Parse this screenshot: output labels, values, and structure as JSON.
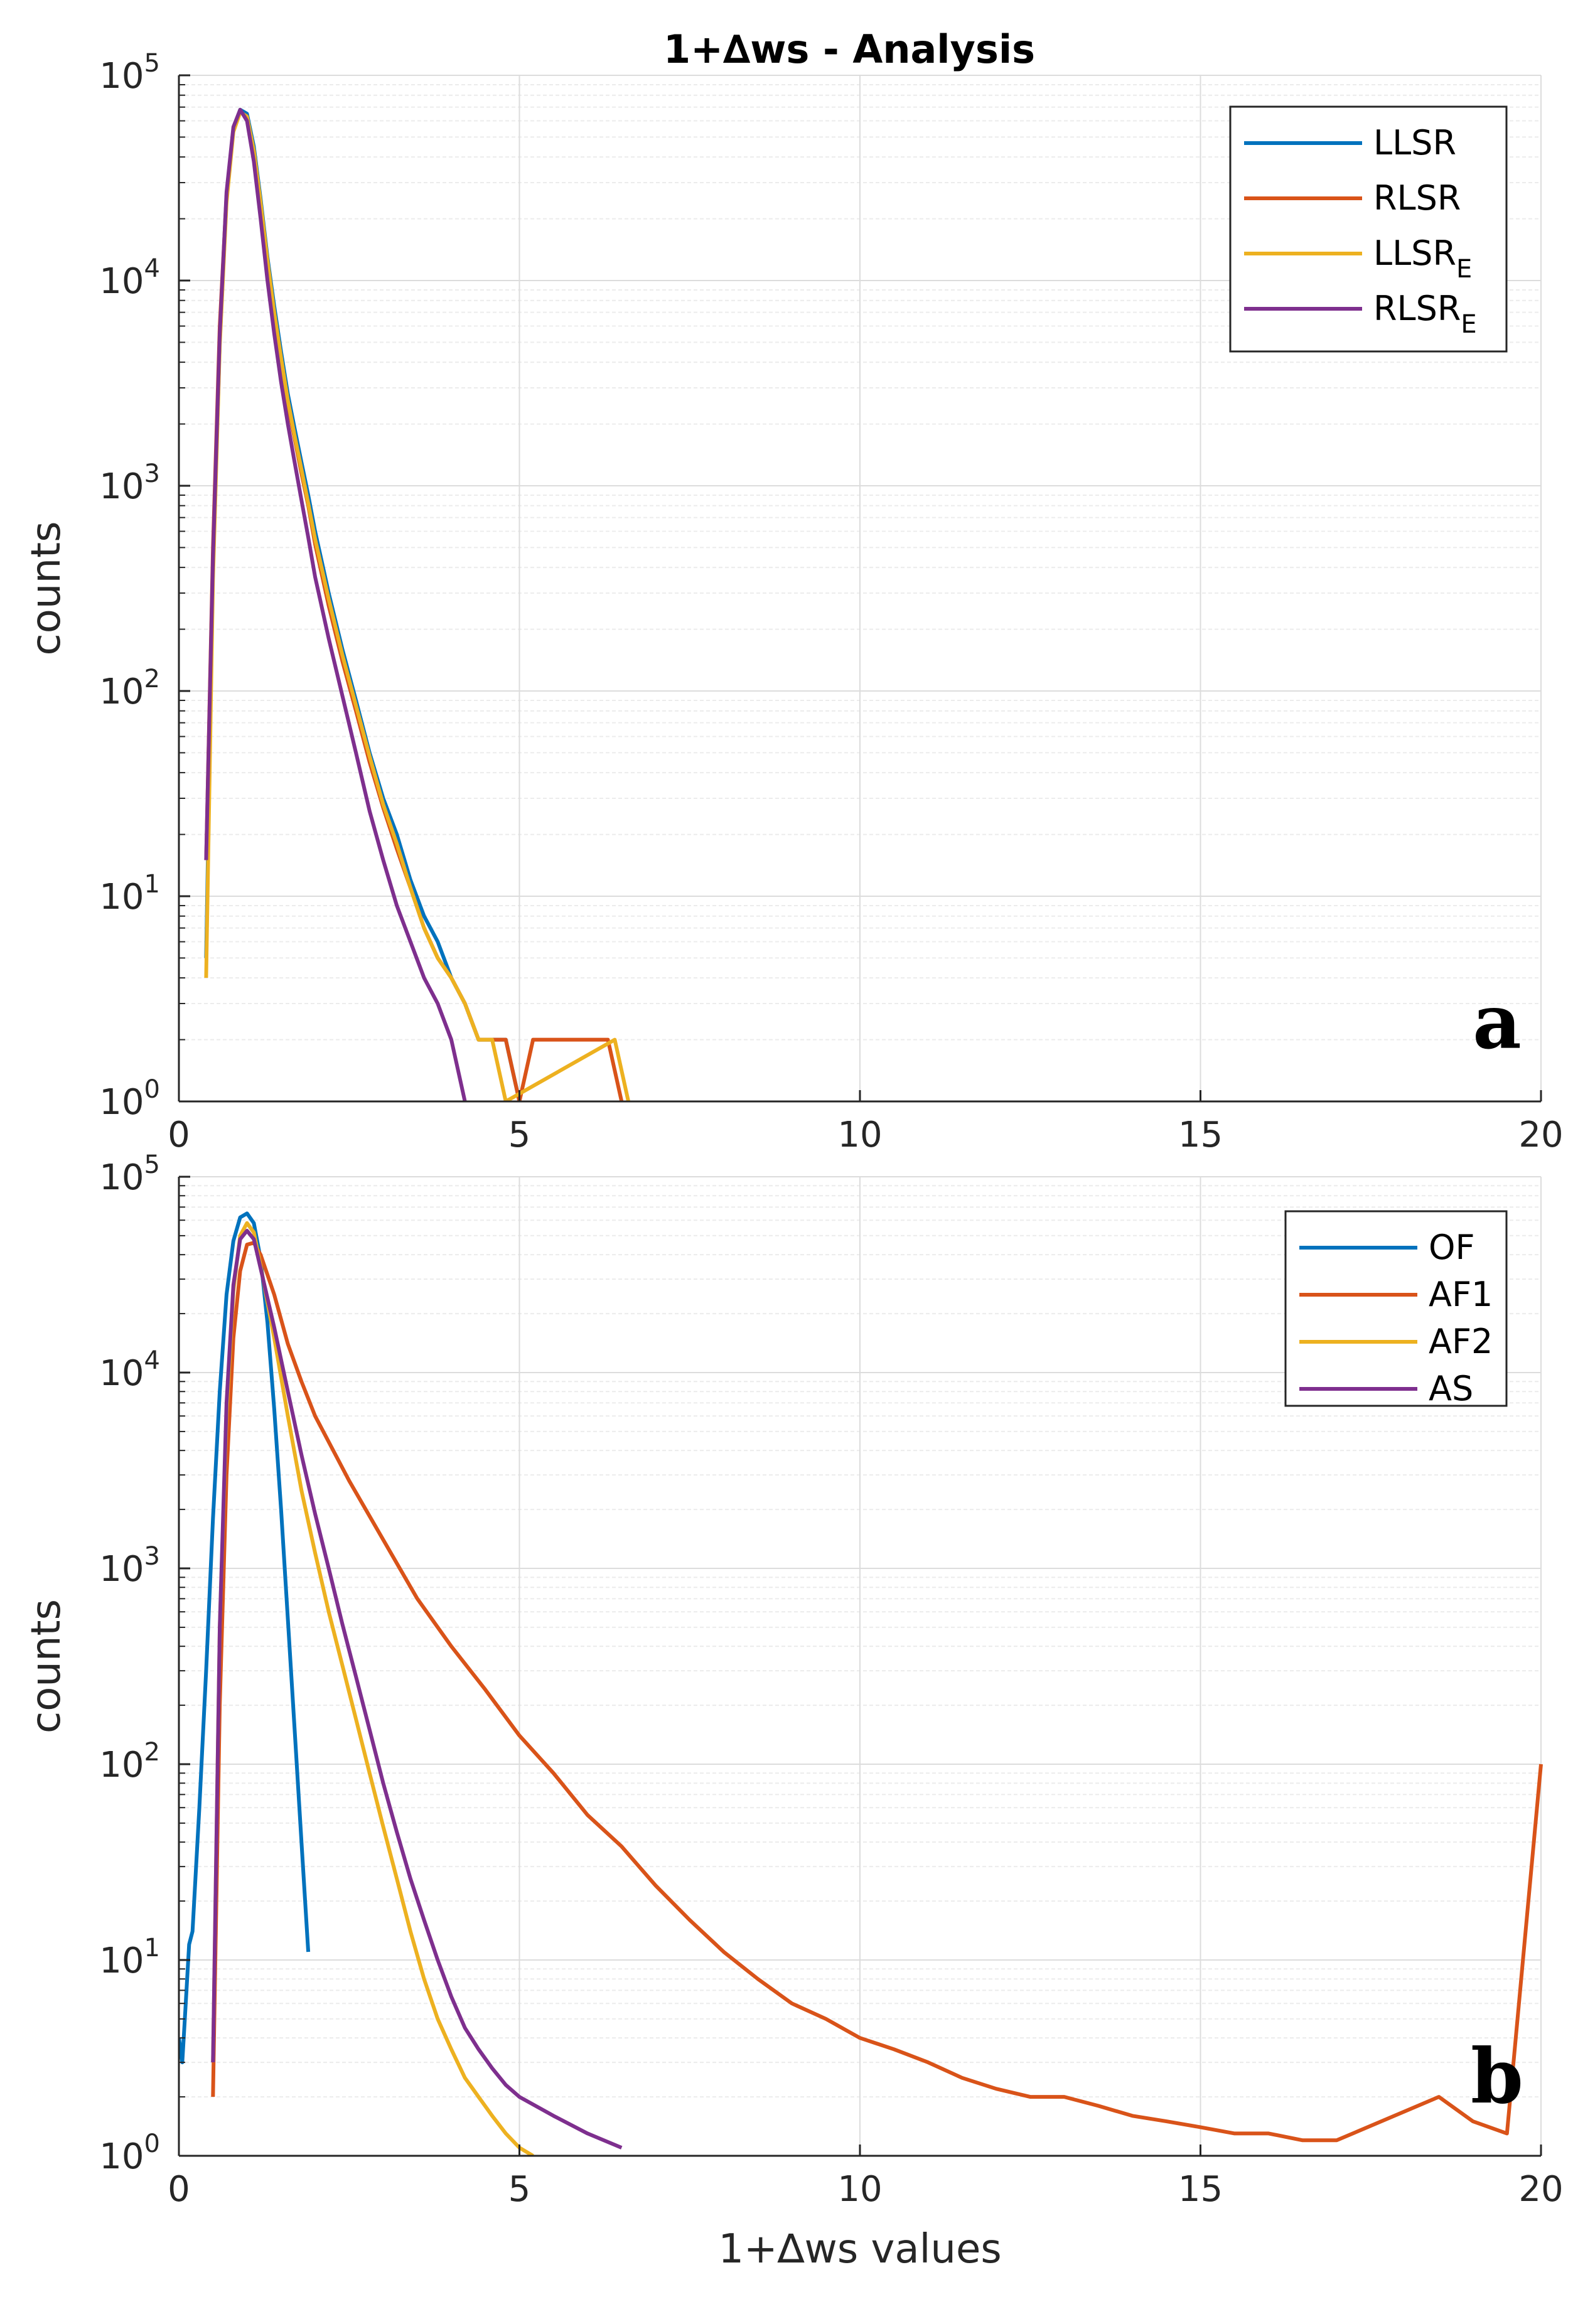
{
  "figure": {
    "title": "1+∆ws - Analysis"
  },
  "chart_data": [
    {
      "type": "line",
      "panel_label": "a",
      "title": "1+∆ws - Analysis",
      "xlabel": "",
      "ylabel": "counts",
      "xlim": [
        0,
        20
      ],
      "ylim": [
        1,
        100000
      ],
      "y_scale": "log",
      "grid": true,
      "legend_position": "top-right",
      "x_ticks": [
        "0",
        "5",
        "10",
        "15",
        "20"
      ],
      "y_ticks": [
        "10^0",
        "10^1",
        "10^2",
        "10^3",
        "10^4",
        "10^5"
      ],
      "series": [
        {
          "name": "LLSR",
          "color": "#0072BD",
          "x": [
            0.4,
            0.5,
            0.6,
            0.7,
            0.8,
            0.9,
            1.0,
            1.1,
            1.2,
            1.3,
            1.4,
            1.5,
            1.6,
            1.7,
            1.8,
            1.9,
            2.0,
            2.2,
            2.4,
            2.6,
            2.8,
            3.0,
            3.2,
            3.4,
            3.6,
            3.8,
            4.0,
            4.2,
            4.4,
            4.6,
            4.8,
            5.0
          ],
          "y": [
            5,
            400,
            5000,
            25000,
            55000,
            68000,
            65000,
            45000,
            25000,
            13000,
            7500,
            4500,
            2800,
            1900,
            1300,
            900,
            600,
            300,
            160,
            90,
            50,
            30,
            20,
            12,
            8,
            6,
            4,
            3,
            2,
            2,
            2,
            1
          ]
        },
        {
          "name": "RLSR",
          "color": "#D95319",
          "x": [
            0.4,
            0.5,
            0.6,
            0.7,
            0.8,
            0.9,
            1.0,
            1.1,
            1.2,
            1.3,
            1.4,
            1.5,
            1.6,
            1.7,
            1.8,
            1.9,
            2.0,
            2.2,
            2.4,
            2.6,
            2.8,
            3.0,
            3.2,
            3.4,
            3.6,
            3.8,
            4.0,
            4.2,
            4.4,
            4.6,
            4.8,
            5.0,
            5.2,
            6.3,
            6.5
          ],
          "y": [
            15,
            500,
            6000,
            26000,
            54000,
            67000,
            62000,
            42000,
            23000,
            12000,
            6800,
            4000,
            2500,
            1700,
            1150,
            800,
            520,
            260,
            140,
            80,
            45,
            27,
            17,
            11,
            7,
            5,
            4,
            3,
            2,
            2,
            2,
            1,
            2,
            2,
            1
          ]
        },
        {
          "name": "LLSR_E",
          "color": "#EDB120",
          "x": [
            0.4,
            0.5,
            0.6,
            0.7,
            0.8,
            0.9,
            1.0,
            1.1,
            1.2,
            1.3,
            1.4,
            1.5,
            1.6,
            1.7,
            1.8,
            1.9,
            2.0,
            2.2,
            2.4,
            2.6,
            2.8,
            3.0,
            3.2,
            3.4,
            3.6,
            3.8,
            4.0,
            4.2,
            4.4,
            4.6,
            4.8,
            6.4,
            6.6
          ],
          "y": [
            4,
            350,
            4800,
            24000,
            53000,
            66000,
            63000,
            43000,
            24000,
            12500,
            7000,
            4200,
            2600,
            1750,
            1200,
            820,
            550,
            280,
            150,
            85,
            48,
            28,
            18,
            11,
            7,
            5,
            4,
            3,
            2,
            2,
            1,
            2,
            1
          ]
        },
        {
          "name": "RLSR_E",
          "color": "#7E2F8E",
          "x": [
            0.4,
            0.5,
            0.6,
            0.7,
            0.8,
            0.9,
            1.0,
            1.1,
            1.2,
            1.3,
            1.4,
            1.5,
            1.6,
            1.7,
            1.8,
            1.9,
            2.0,
            2.2,
            2.4,
            2.6,
            2.8,
            3.0,
            3.2,
            3.4,
            3.6,
            3.8,
            4.0,
            4.2
          ],
          "y": [
            15,
            450,
            5500,
            27000,
            56000,
            68000,
            60000,
            38000,
            20000,
            10000,
            5500,
            3200,
            2000,
            1300,
            850,
            560,
            360,
            180,
            95,
            50,
            26,
            15,
            9,
            6,
            4,
            3,
            2,
            1
          ]
        }
      ]
    },
    {
      "type": "line",
      "panel_label": "b",
      "title": "",
      "xlabel": "1+∆ws values",
      "ylabel": "counts",
      "xlim": [
        0,
        20
      ],
      "ylim": [
        1,
        100000
      ],
      "y_scale": "log",
      "grid": true,
      "legend_position": "top-right",
      "x_ticks": [
        "0",
        "5",
        "10",
        "15",
        "20"
      ],
      "y_ticks": [
        "10^0",
        "10^1",
        "10^2",
        "10^3",
        "10^4",
        "10^5"
      ],
      "series": [
        {
          "name": "OF",
          "color": "#0072BD",
          "x": [
            0.0,
            0.05,
            0.1,
            0.15,
            0.2,
            0.3,
            0.4,
            0.5,
            0.6,
            0.7,
            0.8,
            0.9,
            1.0,
            1.1,
            1.2,
            1.3,
            1.4,
            1.5,
            1.6,
            1.7,
            1.8,
            1.9
          ],
          "y": [
            4,
            3,
            6,
            12,
            14,
            60,
            300,
            1800,
            8000,
            25000,
            47000,
            62000,
            65000,
            58000,
            38000,
            18000,
            6500,
            2000,
            550,
            150,
            40,
            11
          ]
        },
        {
          "name": "AF1",
          "color": "#D95319",
          "x": [
            0.5,
            0.6,
            0.7,
            0.8,
            0.9,
            1.0,
            1.1,
            1.2,
            1.4,
            1.6,
            1.8,
            2.0,
            2.5,
            3.0,
            3.5,
            4.0,
            4.5,
            5.0,
            5.5,
            6.0,
            6.5,
            7.0,
            7.5,
            8.0,
            8.5,
            9.0,
            9.5,
            10.0,
            10.5,
            11.0,
            11.5,
            12.0,
            12.5,
            13.0,
            13.5,
            14.0,
            14.5,
            15.0,
            15.5,
            16.0,
            16.5,
            17.0,
            18.5,
            19.0,
            19.5,
            20.0
          ],
          "y": [
            2,
            200,
            3000,
            15000,
            33000,
            45000,
            46000,
            40000,
            25000,
            14000,
            9000,
            6000,
            2800,
            1400,
            700,
            400,
            240,
            140,
            90,
            55,
            38,
            24,
            16,
            11,
            8,
            6,
            5,
            4,
            3.5,
            3,
            2.5,
            2.2,
            2,
            2,
            1.8,
            1.6,
            1.5,
            1.4,
            1.3,
            1.3,
            1.2,
            1.2,
            2,
            1.5,
            1.3,
            100
          ]
        },
        {
          "name": "AF2",
          "color": "#EDB120",
          "x": [
            0.5,
            0.6,
            0.7,
            0.8,
            0.9,
            1.0,
            1.1,
            1.2,
            1.4,
            1.6,
            1.8,
            2.0,
            2.2,
            2.4,
            2.6,
            2.8,
            3.0,
            3.2,
            3.4,
            3.6,
            3.8,
            4.0,
            4.2,
            4.4,
            4.6,
            4.8,
            5.0,
            5.2
          ],
          "y": [
            3,
            500,
            6000,
            26000,
            50000,
            58000,
            52000,
            35000,
            15000,
            6000,
            2500,
            1200,
            600,
            320,
            170,
            90,
            48,
            26,
            14,
            8,
            5,
            3.5,
            2.5,
            2,
            1.6,
            1.3,
            1.1,
            1
          ]
        },
        {
          "name": "AS",
          "color": "#7E2F8E",
          "x": [
            0.5,
            0.6,
            0.7,
            0.8,
            0.9,
            1.0,
            1.1,
            1.2,
            1.4,
            1.6,
            1.8,
            2.0,
            2.2,
            2.4,
            2.6,
            2.8,
            3.0,
            3.2,
            3.4,
            3.6,
            3.8,
            4.0,
            4.2,
            4.4,
            4.6,
            4.8,
            5.0,
            5.5,
            6.0,
            6.5
          ],
          "y": [
            3,
            500,
            7000,
            28000,
            48000,
            53000,
            48000,
            34000,
            17000,
            8000,
            3800,
            1900,
            1000,
            520,
            280,
            150,
            80,
            45,
            26,
            16,
            10,
            6.5,
            4.5,
            3.5,
            2.8,
            2.3,
            2,
            1.6,
            1.3,
            1.1
          ]
        }
      ]
    }
  ]
}
